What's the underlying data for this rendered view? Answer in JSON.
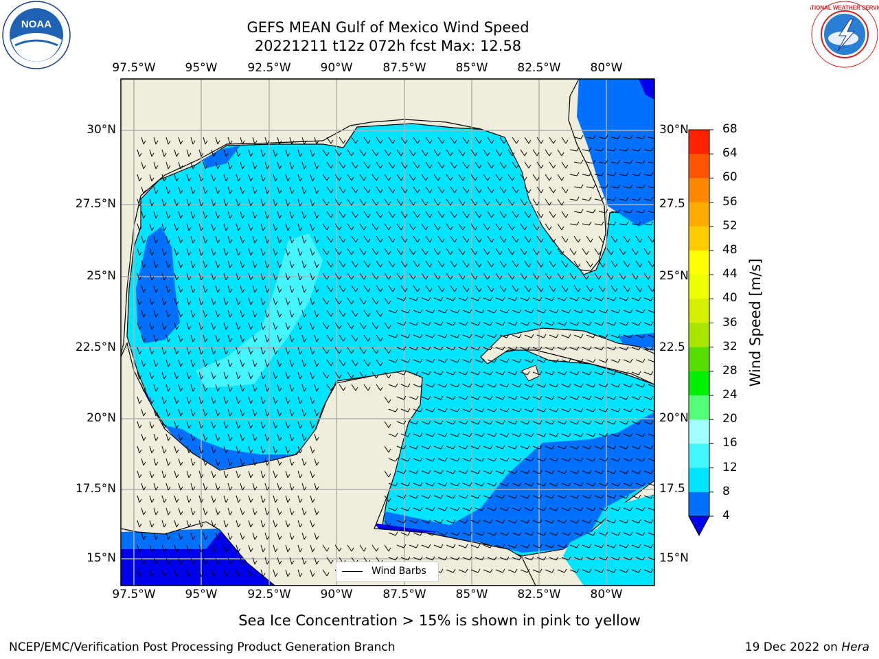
{
  "title": {
    "line1": "GEFS MEAN Gulf of Mexico Wind Speed",
    "line2": "20221211 t12z 072h fcst   Max: 12.58"
  },
  "logos": {
    "noara_icon": "noaa-logo",
    "noara_text": "NOAA",
    "nws_icon": "nws-logo",
    "nws_text": "NATIONAL WEATHER SERVICE"
  },
  "map": {
    "land_color": "#efeddb",
    "grid_color": "#b0b0b0",
    "lon_ticks": [
      "97.5°W",
      "95°W",
      "92.5°W",
      "90°W",
      "87.5°W",
      "85°W",
      "82.5°W",
      "80°W"
    ],
    "lat_ticks_left": [
      "30°N",
      "27.5°N",
      "25°N",
      "22.5°N",
      "20°N",
      "17.5°N",
      "15°N"
    ],
    "lat_ticks_right": [
      "30°N",
      "27.5",
      "25°N",
      "22.5",
      "20°N",
      "17.5",
      "15°N"
    ],
    "legend_label": "Wind Barbs"
  },
  "colorbar": {
    "label": "Wind Speed [m/s]",
    "ticks": [
      "68",
      "64",
      "60",
      "56",
      "52",
      "48",
      "44",
      "40",
      "36",
      "32",
      "28",
      "24",
      "20",
      "16",
      "12",
      "8",
      "4"
    ],
    "colors": [
      "#0000ee",
      "#0070ff",
      "#00e5ff",
      "#44f4ff",
      "#a0ffff",
      "#55ff77",
      "#00ee00",
      "#55dd00",
      "#a8e600",
      "#d4f000",
      "#eeff00",
      "#ffff00",
      "#ffcc00",
      "#ffaa00",
      "#ff8800",
      "#ff5500",
      "#ff2200",
      "#ff0000"
    ]
  },
  "footnote": "Sea Ice Concentration > 15% is shown in pink to yellow",
  "credit_left": "NCEP/EMC/Verification Post Processing Product Generation Branch",
  "credit_right_prefix": "19 Dec 2022 on ",
  "credit_right_system": "Hera"
}
